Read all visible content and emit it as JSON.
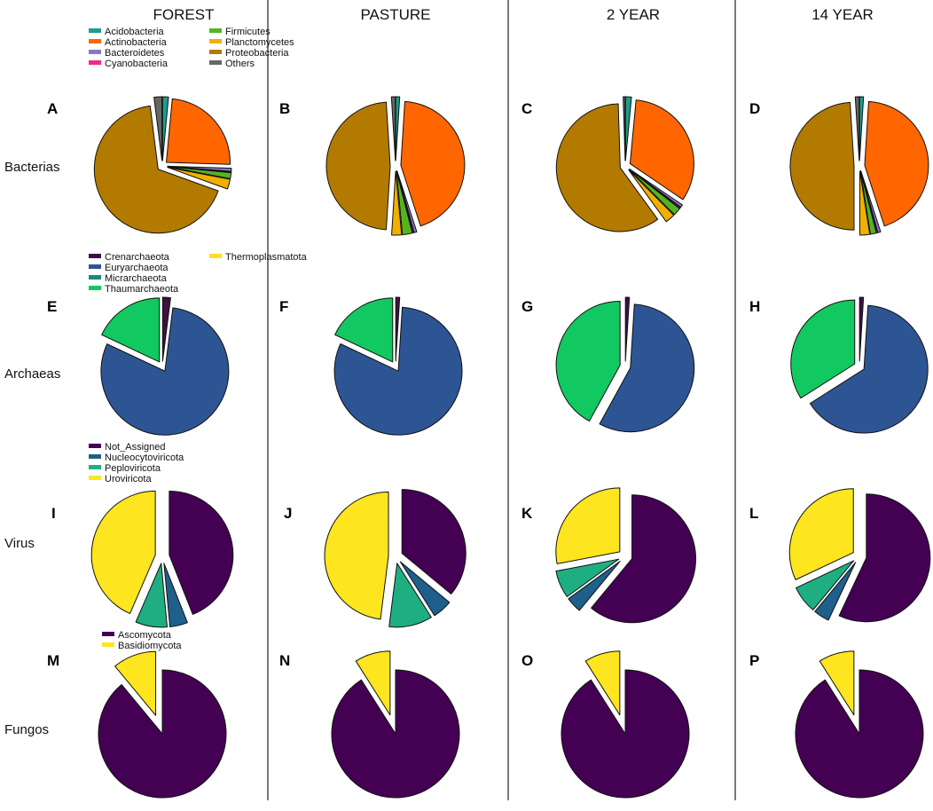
{
  "colors": {
    "Acidobacteria": "#1a9e8a",
    "Actinobacteria": "#ff6600",
    "Bacteroidetes": "#8877cc",
    "Cyanobacteria": "#ee2a88",
    "Firmicutes": "#55b521",
    "Planctomycetes": "#f0b000",
    "Proteobacteria": "#b37a00",
    "Others": "#666666",
    "Crenarchaeota": "#3d0f44",
    "Euryarchaeota": "#2e5593",
    "Micrarchaeota": "#1a8a7a",
    "Thaumarchaeota": "#12c860",
    "Thermoplasmatota": "#ffe020",
    "Not_Assigned": "#440154",
    "Nucleocytoviricota": "#1f5f8b",
    "Peploviricota": "#1fae82",
    "Uroviricota": "#fde51f",
    "Ascomycota": "#440154",
    "Basidiomycota": "#fde51f"
  },
  "chart_data": {
    "type": "pie",
    "columns": [
      "FOREST",
      "PASTURE",
      "2 YEAR",
      "14 YEAR"
    ],
    "rows": [
      "Bacterias",
      "Archaeas",
      "Virus",
      "Fungos"
    ],
    "legends": {
      "Bacterias": [
        "Acidobacteria",
        "Actinobacteria",
        "Bacteroidetes",
        "Cyanobacteria",
        "Firmicutes",
        "Planctomycetes",
        "Proteobacteria",
        "Others"
      ],
      "Archaeas": [
        "Crenarchaeota",
        "Euryarchaeota",
        "Micrarchaeota",
        "Thaumarchaeota",
        "Thermoplasmatota"
      ],
      "Virus": [
        "Not_Assigned",
        "Nucleocytoviricota",
        "Peploviricota",
        "Uroviricota"
      ],
      "Fungos": [
        "Ascomycota",
        "Basidiomycota"
      ]
    },
    "panels": [
      {
        "letter": "A",
        "row": "Bacterias",
        "column": "FOREST",
        "slices": [
          {
            "label": "Acidobacteria",
            "value": 1.5,
            "explode": true
          },
          {
            "label": "Actinobacteria",
            "value": 24,
            "explode": true
          },
          {
            "label": "Bacteroidetes",
            "value": 0.8,
            "explode": true
          },
          {
            "label": "Cyanobacteria",
            "value": 0.2,
            "explode": true
          },
          {
            "label": "Firmicutes",
            "value": 1.5,
            "explode": true
          },
          {
            "label": "Planctomycetes",
            "value": 2.5,
            "explode": true
          },
          {
            "label": "Proteobacteria",
            "value": 67.5,
            "explode": true
          },
          {
            "label": "Others",
            "value": 2,
            "explode": true
          }
        ]
      },
      {
        "letter": "B",
        "row": "Bacterias",
        "column": "PASTURE",
        "slices": [
          {
            "label": "Acidobacteria",
            "value": 1,
            "explode": true
          },
          {
            "label": "Actinobacteria",
            "value": 44,
            "explode": true
          },
          {
            "label": "Bacteroidetes",
            "value": 0.7,
            "explode": true
          },
          {
            "label": "Cyanobacteria",
            "value": 0.3,
            "explode": true
          },
          {
            "label": "Firmicutes",
            "value": 2.5,
            "explode": true
          },
          {
            "label": "Planctomycetes",
            "value": 2.5,
            "explode": true
          },
          {
            "label": "Proteobacteria",
            "value": 48,
            "explode": true
          },
          {
            "label": "Others",
            "value": 1,
            "explode": true
          }
        ]
      },
      {
        "letter": "C",
        "row": "Bacterias",
        "column": "2 YEAR",
        "slices": [
          {
            "label": "Acidobacteria",
            "value": 1.5,
            "explode": true
          },
          {
            "label": "Actinobacteria",
            "value": 33,
            "explode": true
          },
          {
            "label": "Bacteroidetes",
            "value": 0.7,
            "explode": true
          },
          {
            "label": "Cyanobacteria",
            "value": 0.3,
            "explode": true
          },
          {
            "label": "Firmicutes",
            "value": 2,
            "explode": true
          },
          {
            "label": "Planctomycetes",
            "value": 2.5,
            "explode": true
          },
          {
            "label": "Proteobacteria",
            "value": 59.5,
            "explode": true
          },
          {
            "label": "Others",
            "value": 0.5,
            "explode": true
          }
        ]
      },
      {
        "letter": "D",
        "row": "Bacterias",
        "column": "14 YEAR",
        "slices": [
          {
            "label": "Acidobacteria",
            "value": 1,
            "explode": true
          },
          {
            "label": "Actinobacteria",
            "value": 44,
            "explode": true
          },
          {
            "label": "Bacteroidetes",
            "value": 0.7,
            "explode": true
          },
          {
            "label": "Cyanobacteria",
            "value": 0.3,
            "explode": true
          },
          {
            "label": "Firmicutes",
            "value": 1.5,
            "explode": true
          },
          {
            "label": "Planctomycetes",
            "value": 2.5,
            "explode": true
          },
          {
            "label": "Proteobacteria",
            "value": 49,
            "explode": true
          },
          {
            "label": "Others",
            "value": 1,
            "explode": true
          }
        ]
      },
      {
        "letter": "E",
        "row": "Archaeas",
        "column": "FOREST",
        "slices": [
          {
            "label": "Crenarchaeota",
            "value": 2,
            "explode": true
          },
          {
            "label": "Euryarchaeota",
            "value": 80,
            "explode": true
          },
          {
            "label": "Thaumarchaeota",
            "value": 18,
            "explode": true
          }
        ]
      },
      {
        "letter": "F",
        "row": "Archaeas",
        "column": "PASTURE",
        "slices": [
          {
            "label": "Crenarchaeota",
            "value": 1,
            "explode": true
          },
          {
            "label": "Euryarchaeota",
            "value": 81,
            "explode": true
          },
          {
            "label": "Thaumarchaeota",
            "value": 18,
            "explode": true
          }
        ]
      },
      {
        "letter": "G",
        "row": "Archaeas",
        "column": "2 YEAR",
        "slices": [
          {
            "label": "Crenarchaeota",
            "value": 1,
            "explode": true
          },
          {
            "label": "Euryarchaeota",
            "value": 57,
            "explode": true
          },
          {
            "label": "Thaumarchaeota",
            "value": 42,
            "explode": true
          }
        ]
      },
      {
        "letter": "H",
        "row": "Archaeas",
        "column": "14 YEAR",
        "slices": [
          {
            "label": "Crenarchaeota",
            "value": 1,
            "explode": true
          },
          {
            "label": "Euryarchaeota",
            "value": 65,
            "explode": true
          },
          {
            "label": "Thaumarchaeota",
            "value": 34,
            "explode": true
          }
        ]
      },
      {
        "letter": "I",
        "row": "Virus",
        "column": "FOREST",
        "slices": [
          {
            "label": "Not_Assigned",
            "value": 44,
            "explode": true
          },
          {
            "label": "Nucleocytoviricota",
            "value": 4.5,
            "explode": true
          },
          {
            "label": "Peploviricota",
            "value": 8,
            "explode": true
          },
          {
            "label": "Uroviricota",
            "value": 43.5,
            "explode": true
          }
        ]
      },
      {
        "letter": "J",
        "row": "Virus",
        "column": "PASTURE",
        "slices": [
          {
            "label": "Not_Assigned",
            "value": 36,
            "explode": true
          },
          {
            "label": "Nucleocytoviricota",
            "value": 5,
            "explode": true
          },
          {
            "label": "Peploviricota",
            "value": 11,
            "explode": true
          },
          {
            "label": "Uroviricota",
            "value": 48,
            "explode": true
          }
        ]
      },
      {
        "letter": "K",
        "row": "Virus",
        "column": "2 YEAR",
        "slices": [
          {
            "label": "Not_Assigned",
            "value": 61,
            "explode": true
          },
          {
            "label": "Nucleocytoviricota",
            "value": 4,
            "explode": true
          },
          {
            "label": "Peploviricota",
            "value": 7,
            "explode": true
          },
          {
            "label": "Uroviricota",
            "value": 28,
            "explode": true
          }
        ]
      },
      {
        "letter": "L",
        "row": "Virus",
        "column": "14 YEAR",
        "slices": [
          {
            "label": "Not_Assigned",
            "value": 57,
            "explode": true
          },
          {
            "label": "Nucleocytoviricota",
            "value": 4,
            "explode": true
          },
          {
            "label": "Peploviricota",
            "value": 7,
            "explode": true
          },
          {
            "label": "Uroviricota",
            "value": 32,
            "explode": true
          }
        ]
      },
      {
        "letter": "M",
        "row": "Fungos",
        "column": "FOREST",
        "slices": [
          {
            "label": "Ascomycota",
            "value": 89,
            "explode": false
          },
          {
            "label": "Basidiomycota",
            "value": 11,
            "explode": true
          }
        ]
      },
      {
        "letter": "N",
        "row": "Fungos",
        "column": "PASTURE",
        "slices": [
          {
            "label": "Ascomycota",
            "value": 91,
            "explode": false
          },
          {
            "label": "Basidiomycota",
            "value": 9,
            "explode": true
          }
        ]
      },
      {
        "letter": "O",
        "row": "Fungos",
        "column": "2 YEAR",
        "slices": [
          {
            "label": "Ascomycota",
            "value": 91,
            "explode": false
          },
          {
            "label": "Basidiomycota",
            "value": 9,
            "explode": true
          }
        ]
      },
      {
        "letter": "P",
        "row": "Fungos",
        "column": "14 YEAR",
        "slices": [
          {
            "label": "Ascomycota",
            "value": 91,
            "explode": false
          },
          {
            "label": "Basidiomycota",
            "value": 9,
            "explode": true
          }
        ]
      }
    ]
  }
}
